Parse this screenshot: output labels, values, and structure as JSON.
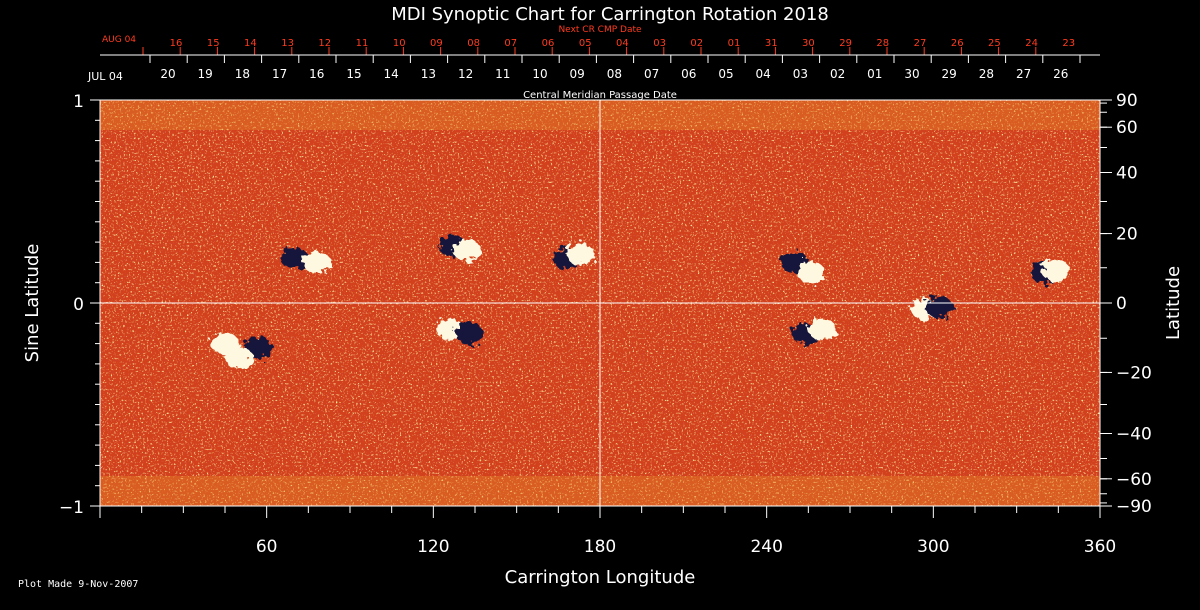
{
  "colors": {
    "background": "#000000",
    "text": "#ffffff",
    "next_cr_text": "#ff3b1f",
    "field_base": "#d2401c",
    "positive_polarity": "#fff8e0",
    "negative_polarity": "#16163c"
  },
  "chart_data": {
    "type": "heatmap",
    "title": "MDI Synoptic Chart for Carrington Rotation 2018",
    "xlabel": "Carrington Longitude",
    "ylabel_left": "Sine Latitude",
    "ylabel_right": "Latitude",
    "xlim": [
      0,
      360
    ],
    "ylim": [
      -1,
      1
    ],
    "x_ticks": [
      "60",
      "120",
      "180",
      "240",
      "300",
      "360"
    ],
    "y_left_ticks": [
      {
        "value": 1,
        "label": "1"
      },
      {
        "value": 0,
        "label": "0"
      },
      {
        "value": -1,
        "label": "−1"
      }
    ],
    "y_right_ticks": [
      {
        "value": 90,
        "label": "90"
      },
      {
        "value": 60,
        "label": "60"
      },
      {
        "value": 40,
        "label": "40"
      },
      {
        "value": 20,
        "label": "20"
      },
      {
        "value": 0,
        "label": "0"
      },
      {
        "value": -20,
        "label": "−20"
      },
      {
        "value": -40,
        "label": "−40"
      },
      {
        "value": -60,
        "label": "−60"
      },
      {
        "value": -90,
        "label": "−90"
      }
    ],
    "crosshair": {
      "longitude": 180,
      "sine_latitude": 0
    },
    "cmp_axis": {
      "label": "Central Meridian Passage Date",
      "start_label": "JUL 04",
      "days": [
        "20",
        "19",
        "18",
        "17",
        "16",
        "15",
        "14",
        "13",
        "12",
        "11",
        "10",
        "09",
        "08",
        "07",
        "06",
        "05",
        "04",
        "03",
        "02",
        "01",
        "30",
        "29",
        "28",
        "27",
        "26"
      ]
    },
    "next_cr_axis": {
      "label": "Next CR CMP Date",
      "start_label": "AUG 04",
      "days": [
        "16",
        "15",
        "14",
        "13",
        "12",
        "11",
        "10",
        "09",
        "08",
        "07",
        "06",
        "05",
        "04",
        "03",
        "02",
        "01",
        "31",
        "30",
        "29",
        "28",
        "27",
        "26",
        "25",
        "24",
        "23"
      ]
    },
    "active_regions": [
      {
        "lon": 45,
        "sinlat": -0.2,
        "polarity": "positive"
      },
      {
        "lon": 57,
        "sinlat": -0.22,
        "polarity": "negative"
      },
      {
        "lon": 50,
        "sinlat": -0.27,
        "polarity": "positive"
      },
      {
        "lon": 70,
        "sinlat": 0.22,
        "polarity": "negative"
      },
      {
        "lon": 78,
        "sinlat": 0.2,
        "polarity": "positive"
      },
      {
        "lon": 127,
        "sinlat": 0.28,
        "polarity": "negative"
      },
      {
        "lon": 132,
        "sinlat": 0.26,
        "polarity": "positive"
      },
      {
        "lon": 168,
        "sinlat": 0.22,
        "polarity": "negative"
      },
      {
        "lon": 173,
        "sinlat": 0.24,
        "polarity": "positive"
      },
      {
        "lon": 126,
        "sinlat": -0.13,
        "polarity": "positive"
      },
      {
        "lon": 133,
        "sinlat": -0.15,
        "polarity": "negative"
      },
      {
        "lon": 250,
        "sinlat": 0.2,
        "polarity": "negative"
      },
      {
        "lon": 256,
        "sinlat": 0.15,
        "polarity": "positive"
      },
      {
        "lon": 254,
        "sinlat": -0.15,
        "polarity": "negative"
      },
      {
        "lon": 260,
        "sinlat": -0.13,
        "polarity": "positive"
      },
      {
        "lon": 297,
        "sinlat": -0.03,
        "polarity": "positive"
      },
      {
        "lon": 302,
        "sinlat": -0.02,
        "polarity": "negative"
      },
      {
        "lon": 340,
        "sinlat": 0.15,
        "polarity": "negative"
      },
      {
        "lon": 344,
        "sinlat": 0.16,
        "polarity": "positive"
      }
    ]
  },
  "footer": {
    "text": "Plot Made  9-Nov-2007"
  }
}
